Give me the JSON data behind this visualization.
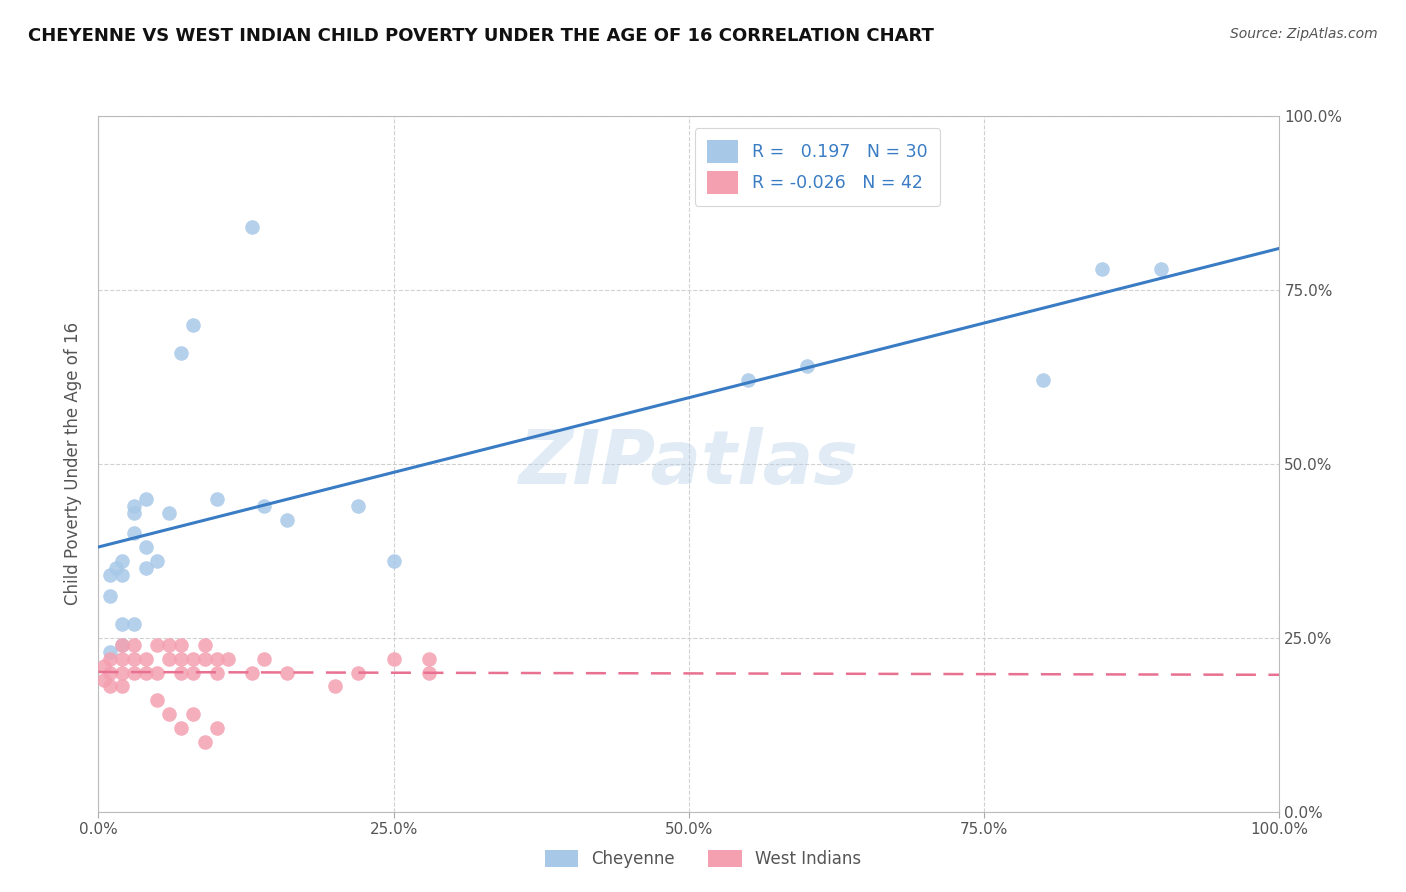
{
  "title": "CHEYENNE VS WEST INDIAN CHILD POVERTY UNDER THE AGE OF 16 CORRELATION CHART",
  "source": "Source: ZipAtlas.com",
  "ylabel": "Child Poverty Under the Age of 16",
  "xlim": [
    0.0,
    1.0
  ],
  "ylim": [
    0.0,
    1.05
  ],
  "xticks": [
    0.0,
    0.25,
    0.5,
    0.75,
    1.0
  ],
  "yticks": [
    0.0,
    0.25,
    0.5,
    0.75,
    1.0
  ],
  "xticklabels": [
    "0.0%",
    "25.0%",
    "50.0%",
    "75.0%",
    "100.0%"
  ],
  "yticklabels_right": [
    "0.0%",
    "25.0%",
    "50.0%",
    "75.0%",
    "100.0%"
  ],
  "cheyenne_color": "#a8c8e8",
  "west_indian_color": "#f4a0b0",
  "cheyenne_line_color": "#3a7cc4",
  "west_indian_line_color": "#e87090",
  "R_cheyenne": 0.197,
  "N_cheyenne": 30,
  "R_west_indian": -0.026,
  "N_west_indian": 42,
  "cheyenne_x": [
    0.07,
    0.08,
    0.13,
    0.04,
    0.03,
    0.06,
    0.03,
    0.02,
    0.01,
    0.01,
    0.02,
    0.03,
    0.14,
    0.1,
    0.22,
    0.25,
    0.16,
    0.02,
    0.04,
    0.55,
    0.6,
    0.8,
    0.9,
    0.85,
    0.05,
    0.04,
    0.03,
    0.02,
    0.01,
    0.015
  ],
  "cheyenne_y": [
    0.66,
    0.7,
    0.84,
    0.45,
    0.4,
    0.43,
    0.44,
    0.34,
    0.34,
    0.31,
    0.27,
    0.43,
    0.44,
    0.45,
    0.44,
    0.36,
    0.42,
    0.36,
    0.38,
    0.62,
    0.64,
    0.62,
    0.78,
    0.78,
    0.36,
    0.35,
    0.27,
    0.24,
    0.23,
    0.35
  ],
  "west_indian_x": [
    0.005,
    0.005,
    0.01,
    0.01,
    0.01,
    0.02,
    0.02,
    0.02,
    0.02,
    0.03,
    0.03,
    0.03,
    0.04,
    0.04,
    0.05,
    0.05,
    0.06,
    0.06,
    0.07,
    0.07,
    0.07,
    0.08,
    0.08,
    0.09,
    0.09,
    0.1,
    0.1,
    0.11,
    0.13,
    0.14,
    0.16,
    0.2,
    0.22,
    0.25,
    0.28,
    0.28,
    0.05,
    0.06,
    0.07,
    0.08,
    0.09,
    0.1
  ],
  "west_indian_y": [
    0.21,
    0.19,
    0.22,
    0.2,
    0.18,
    0.22,
    0.2,
    0.18,
    0.24,
    0.22,
    0.2,
    0.24,
    0.22,
    0.2,
    0.24,
    0.2,
    0.22,
    0.24,
    0.22,
    0.24,
    0.2,
    0.22,
    0.2,
    0.22,
    0.24,
    0.22,
    0.2,
    0.22,
    0.2,
    0.22,
    0.2,
    0.18,
    0.2,
    0.22,
    0.2,
    0.22,
    0.16,
    0.14,
    0.12,
    0.14,
    0.1,
    0.12
  ],
  "watermark": "ZIPatlas",
  "background_color": "#ffffff",
  "grid_color": "#cccccc",
  "title_color": "#111111",
  "axis_label_color": "#555555",
  "tick_label_color": "#555555",
  "legend_text_color": "#3a7cc4"
}
